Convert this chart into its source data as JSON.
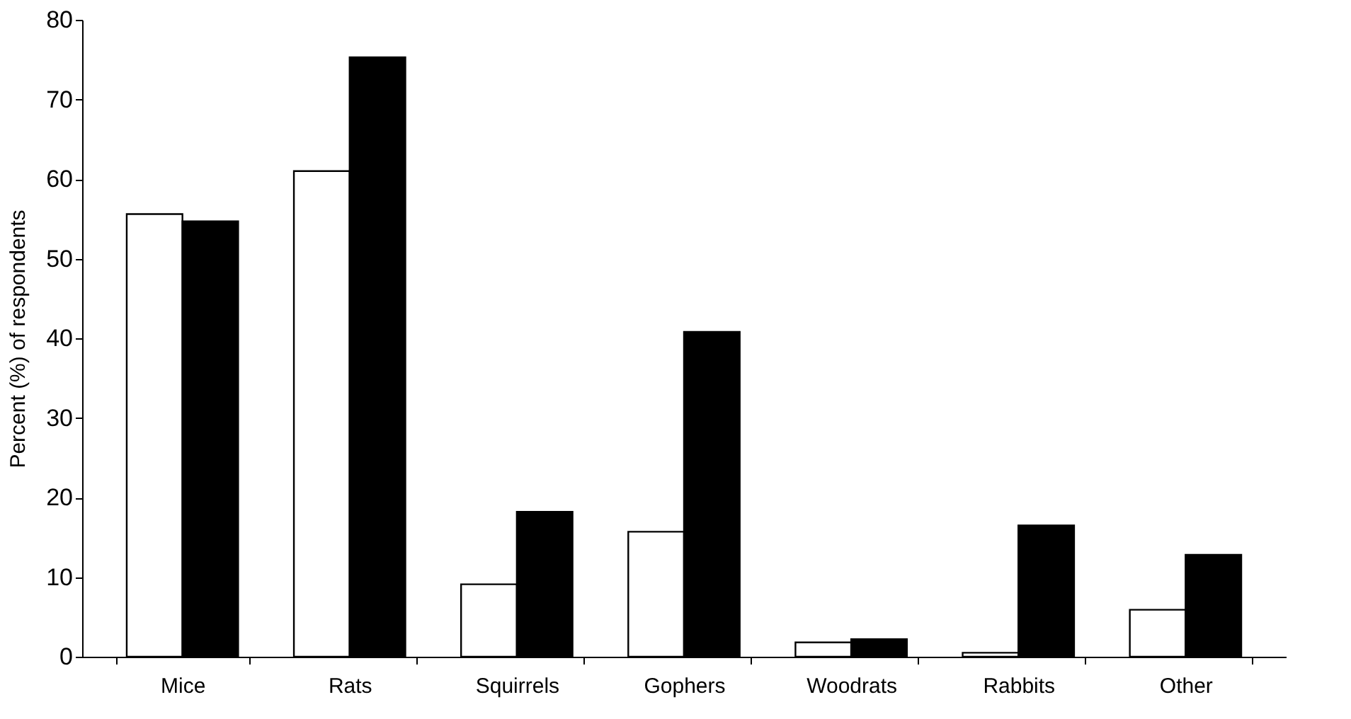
{
  "chart_data": {
    "type": "bar",
    "ylabel": "Percent (%) of respondents",
    "categories": [
      "Mice",
      "Rats",
      "Squirrels",
      "Gophers",
      "Woodrats",
      "Rabbits",
      "Other"
    ],
    "series": [
      {
        "color": "#ffffff",
        "values": [
          55.6,
          61.0,
          9.1,
          15.7,
          1.8,
          0.5,
          5.9
        ]
      },
      {
        "color": "#000000",
        "values": [
          54.7,
          75.3,
          18.2,
          40.8,
          2.2,
          16.5,
          12.8
        ]
      }
    ],
    "ylim": [
      0,
      80
    ],
    "yticks": [
      0,
      10,
      20,
      30,
      40,
      50,
      60,
      70,
      80
    ],
    "grid": false,
    "legend": false
  }
}
